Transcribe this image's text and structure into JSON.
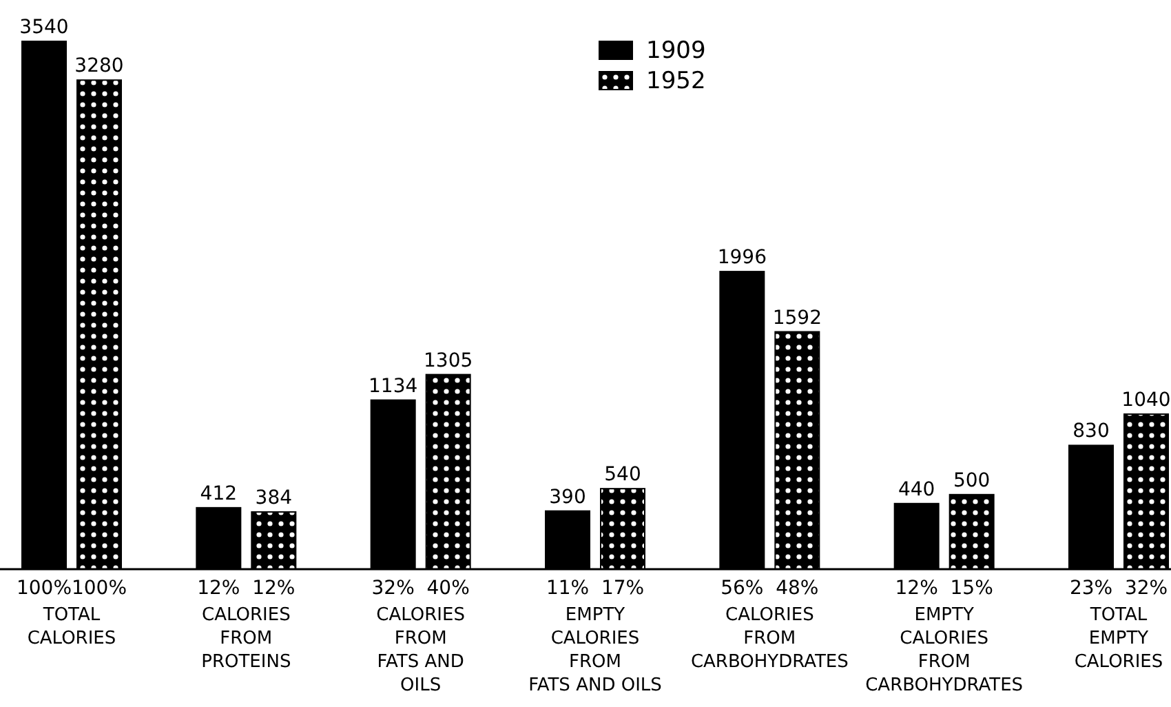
{
  "chart_data": {
    "type": "bar",
    "categories": [
      "TOTAL\nCALORIES",
      "CALORIES\nFROM\nPROTEINS",
      "CALORIES\nFROM\nFATS AND\nOILS",
      "EMPTY\nCALORIES\nFROM\nFATS AND OILS",
      "CALORIES\nFROM\nCARBOHYDRATES",
      "EMPTY\nCALORIES\nFROM\nCARBOHYDRATES",
      "TOTAL\nEMPTY\nCALORIES"
    ],
    "series": [
      {
        "name": "1909",
        "color": "#000000",
        "values": [
          3540,
          412,
          1134,
          390,
          1996,
          440,
          830
        ]
      },
      {
        "name": "1952",
        "color": "#000000",
        "values": [
          3280,
          384,
          1305,
          540,
          1592,
          500,
          1040
        ]
      }
    ],
    "data_labels": true,
    "legend": "top",
    "annotations": [
      {
        "text": "100%",
        "x": "TOTAL\nCALORIES",
        "y": 0
      },
      {
        "text": "100%",
        "x": "TOTAL\nCALORIES",
        "y": 0
      },
      {
        "text": "12%",
        "x": "CALORIES\nFROM\nPROTEINS",
        "y": 0
      },
      {
        "text": "12%",
        "x": "CALORIES\nFROM\nPROTEINS",
        "y": 0
      },
      {
        "text": "32%",
        "x": "CALORIES\nFROM\nFATS AND\nOILS",
        "y": 0
      },
      {
        "text": "40%",
        "x": "CALORIES\nFROM\nFATS AND\nOILS",
        "y": 0
      },
      {
        "text": "11%",
        "x": "EMPTY\nCALORIES\nFROM\nFATS AND OILS",
        "y": 0
      },
      {
        "text": "17%",
        "x": "EMPTY\nCALORIES\nFROM\nFATS AND OILS",
        "y": 0
      },
      {
        "text": "56%",
        "x": "CALORIES\nFROM\nCARBOHYDRATES",
        "y": 0
      },
      {
        "text": "48%",
        "x": "CALORIES\nFROM\nCARBOHYDRATES",
        "y": 0
      },
      {
        "text": "12%",
        "x": "EMPTY\nCALORIES\nFROM\nCARBOHYDRATES",
        "y": 0
      },
      {
        "text": "15%",
        "x": "EMPTY\nCALORIES\nFROM\nCARBOHYDRATES",
        "y": 0
      },
      {
        "text": "23%",
        "x": "TOTAL\nEMPTY\nCALORIES",
        "y": 0
      },
      {
        "text": "32%",
        "x": "TOTAL\nEMPTY\nCALORIES",
        "y": 0
      }
    ]
  }
}
